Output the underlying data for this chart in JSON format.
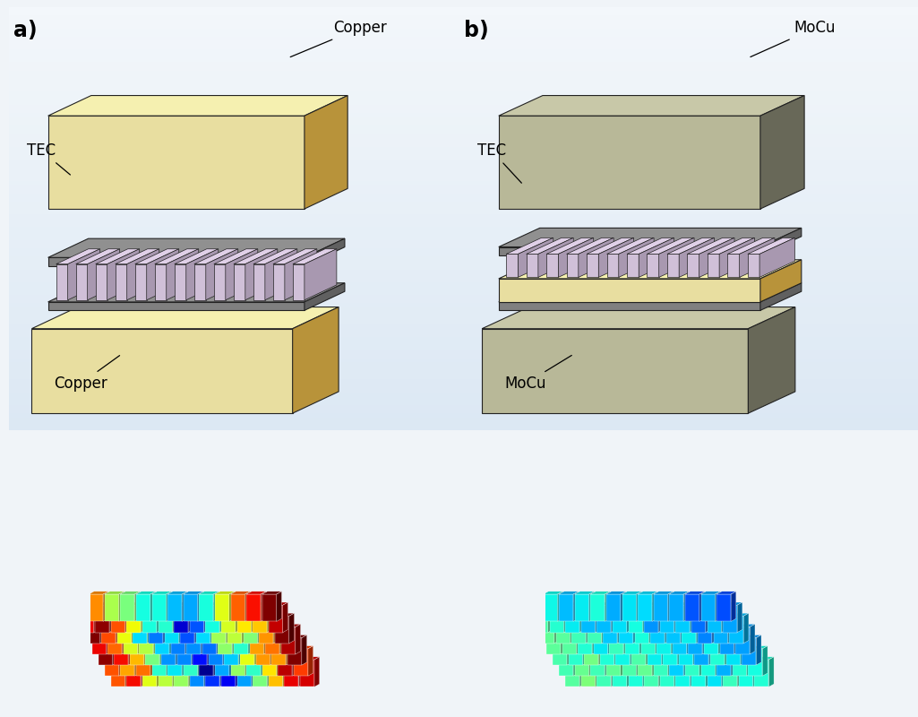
{
  "panel_a_label": "a)",
  "panel_b_label": "b)",
  "label_copper_top": "Copper",
  "label_copper_bottom": "Copper",
  "label_mocu_top": "MoCu",
  "label_mocu_bottom": "MoCu",
  "label_tec_a": "TEC",
  "label_tec_b": "TEC",
  "copper_top_color": "#f5f0b0",
  "copper_front_color": "#e8dea0",
  "copper_right_color": "#b8933a",
  "copper_side_color": "#c8a848",
  "mocu_top_color": "#c8c8a8",
  "mocu_front_color": "#b8b898",
  "mocu_right_color": "#686858",
  "mocu_side_color": "#888870",
  "tec_plate_top": "#909090",
  "tec_plate_front": "#808080",
  "tec_plate_right": "#606060",
  "tec_pillar_front": "#d0c0d8",
  "tec_pillar_right": "#a898b0",
  "tec_pillar_top": "#e0d0e8",
  "outline_color": "#222222",
  "bg_top_color": "#dce8f2",
  "bg_bottom_color": "#e8f0f8",
  "n_cols_sim": 13,
  "n_rows_sim": 7
}
